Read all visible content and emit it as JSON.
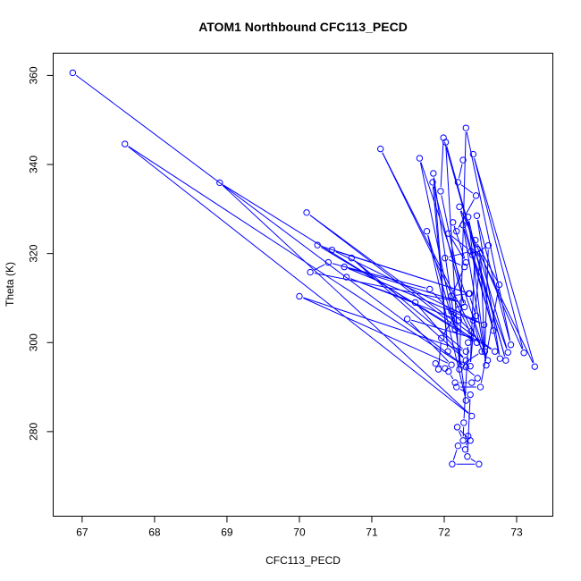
{
  "chart_data": {
    "type": "scatter",
    "title": "ATOM1 Northbound CFC113_PECD",
    "xlabel": "CFC113_PECD",
    "ylabel": "Theta (K)",
    "xlim": [
      66.6,
      73.5
    ],
    "ylim": [
      261,
      365
    ],
    "xticks": [
      67,
      68,
      69,
      70,
      71,
      72,
      73
    ],
    "yticks": [
      280,
      300,
      320,
      340,
      360
    ],
    "grid": false,
    "legend": "none",
    "series": [
      {
        "color": "#0000ff",
        "style": "lines+points",
        "points": [
          [
            66.87,
            360.6
          ],
          [
            72.3,
            294.5
          ],
          [
            67.59,
            344.6
          ],
          [
            72.38,
            283.5
          ],
          [
            68.9,
            335.9
          ],
          [
            72.45,
            300.0
          ],
          [
            70.1,
            329.2
          ],
          [
            72.7,
            298.0
          ],
          [
            70.25,
            321.9
          ],
          [
            72.35,
            311.0
          ],
          [
            70.45,
            320.8
          ],
          [
            72.55,
            304.0
          ],
          [
            70.62,
            317.0
          ],
          [
            72.25,
            309.0
          ],
          [
            70.15,
            315.8
          ],
          [
            70.4,
            318.0
          ],
          [
            71.8,
            312.0
          ],
          [
            72.2,
            305.0
          ],
          [
            70.65,
            314.7
          ],
          [
            71.6,
            309.0
          ],
          [
            72.3,
            296.0
          ],
          [
            70.72,
            319.0
          ],
          [
            72.3,
            298.0
          ],
          [
            70.0,
            310.4
          ],
          [
            72.1,
            295.0
          ],
          [
            71.49,
            305.3
          ],
          [
            72.4,
            301.0
          ],
          [
            71.12,
            343.5
          ],
          [
            72.6,
            296.0
          ],
          [
            71.66,
            341.4
          ],
          [
            72.15,
            303.0
          ],
          [
            71.76,
            325.0
          ],
          [
            72.3,
            287.0
          ],
          [
            71.85,
            338.0
          ],
          [
            72.05,
            298.0
          ],
          [
            71.84,
            336.0
          ],
          [
            72.28,
            308.0
          ],
          [
            71.95,
            334.0
          ],
          [
            71.99,
            346.0
          ],
          [
            72.85,
            296.0
          ],
          [
            72.02,
            345.0
          ],
          [
            72.21,
            294.0
          ],
          [
            72.3,
            348.2
          ],
          [
            72.92,
            299.5
          ],
          [
            72.45,
            328.5
          ],
          [
            72.77,
            296.4
          ],
          [
            72.33,
            328.2
          ],
          [
            72.58,
            294.9
          ],
          [
            72.26,
            326.4
          ],
          [
            72.68,
            302.7
          ],
          [
            72.21,
            330.5
          ],
          [
            73.1,
            297.7
          ],
          [
            72.4,
            342.3
          ],
          [
            73.25,
            294.6
          ],
          [
            72.46,
            321.0
          ],
          [
            72.88,
            297.8
          ],
          [
            72.39,
            319.7
          ],
          [
            72.61,
            321.8
          ],
          [
            72.56,
            298.0
          ],
          [
            72.5,
            320.0
          ],
          [
            72.36,
            294.7
          ],
          [
            72.43,
            323.0
          ],
          [
            72.76,
            313.0
          ],
          [
            72.5,
            290.0
          ],
          [
            72.17,
            290.0
          ],
          [
            72.36,
            288.3
          ],
          [
            72.32,
            274.4
          ],
          [
            72.48,
            272.7
          ],
          [
            72.11,
            272.7
          ],
          [
            72.19,
            276.8
          ],
          [
            72.29,
            276.0
          ],
          [
            72.33,
            279.0
          ],
          [
            72.36,
            278.0
          ],
          [
            72.18,
            281.0
          ],
          [
            72.26,
            278.0
          ],
          [
            72.27,
            282.0
          ],
          [
            72.33,
            300.0
          ],
          [
            72.37,
            302.5
          ],
          [
            72.1,
            307.0
          ],
          [
            72.2,
            307.5
          ],
          [
            71.96,
            301.0
          ],
          [
            71.92,
            294.0
          ],
          [
            71.88,
            295.3
          ],
          [
            72.01,
            294.2
          ],
          [
            72.06,
            293.5
          ],
          [
            72.15,
            291.0
          ],
          [
            72.38,
            291.0
          ],
          [
            72.46,
            292.0
          ],
          [
            72.24,
            295.0
          ],
          [
            72.52,
            298.0
          ],
          [
            72.4,
            305.0
          ],
          [
            72.44,
            306.0
          ],
          [
            72.34,
            311.0
          ],
          [
            72.1,
            310.5
          ],
          [
            72.28,
            317.0
          ],
          [
            72.01,
            319.0
          ],
          [
            72.37,
            320.5
          ],
          [
            72.06,
            324.5
          ],
          [
            72.3,
            318.0
          ],
          [
            72.12,
            327.0
          ],
          [
            72.17,
            325.0
          ],
          [
            72.44,
            333.0
          ],
          [
            72.19,
            336.0
          ],
          [
            72.26,
            341.0
          ]
        ]
      }
    ]
  }
}
